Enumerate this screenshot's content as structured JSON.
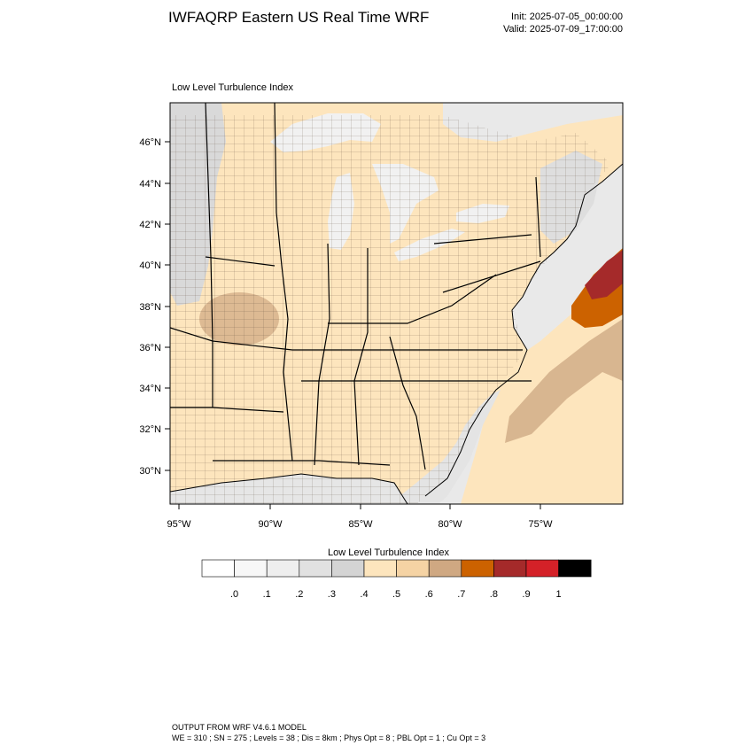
{
  "header": {
    "title": "IWFAQRP Eastern US Real Time WRF",
    "init": "Init: 2025-07-05_00:00:00",
    "valid": "Valid: 2025-07-09_17:00:00"
  },
  "plot": {
    "field_label": "Low Level Turbulence Index",
    "lat_labels": [
      "46°N",
      "44°N",
      "42°N",
      "40°N",
      "38°N",
      "36°N",
      "34°N",
      "32°N",
      "30°N"
    ],
    "lon_labels": [
      "95°W",
      "90°W",
      "85°W",
      "80°W",
      "75°W"
    ]
  },
  "colorbar": {
    "title": "Low Level Turbulence Index",
    "colors": [
      "#ffffff",
      "#f7f7f7",
      "#eeeeee",
      "#e1e1e1",
      "#d4d4d4",
      "#fde5bd",
      "#f5d3a4",
      "#cfa882",
      "#cc6200",
      "#a52a2a",
      "#d42128",
      "#000000"
    ],
    "tick_labels": [
      ".0",
      ".1",
      ".2",
      ".3",
      ".4",
      ".5",
      ".6",
      ".7",
      ".8",
      ".9",
      "1"
    ]
  },
  "footer": {
    "line1": "OUTPUT FROM WRF V4.6.1 MODEL",
    "line2": "WE = 310 ; SN = 275 ; Levels = 38 ; Dis = 8km ; Phys Opt = 8 ; PBL Opt = 1 ; Cu Opt = 3"
  }
}
